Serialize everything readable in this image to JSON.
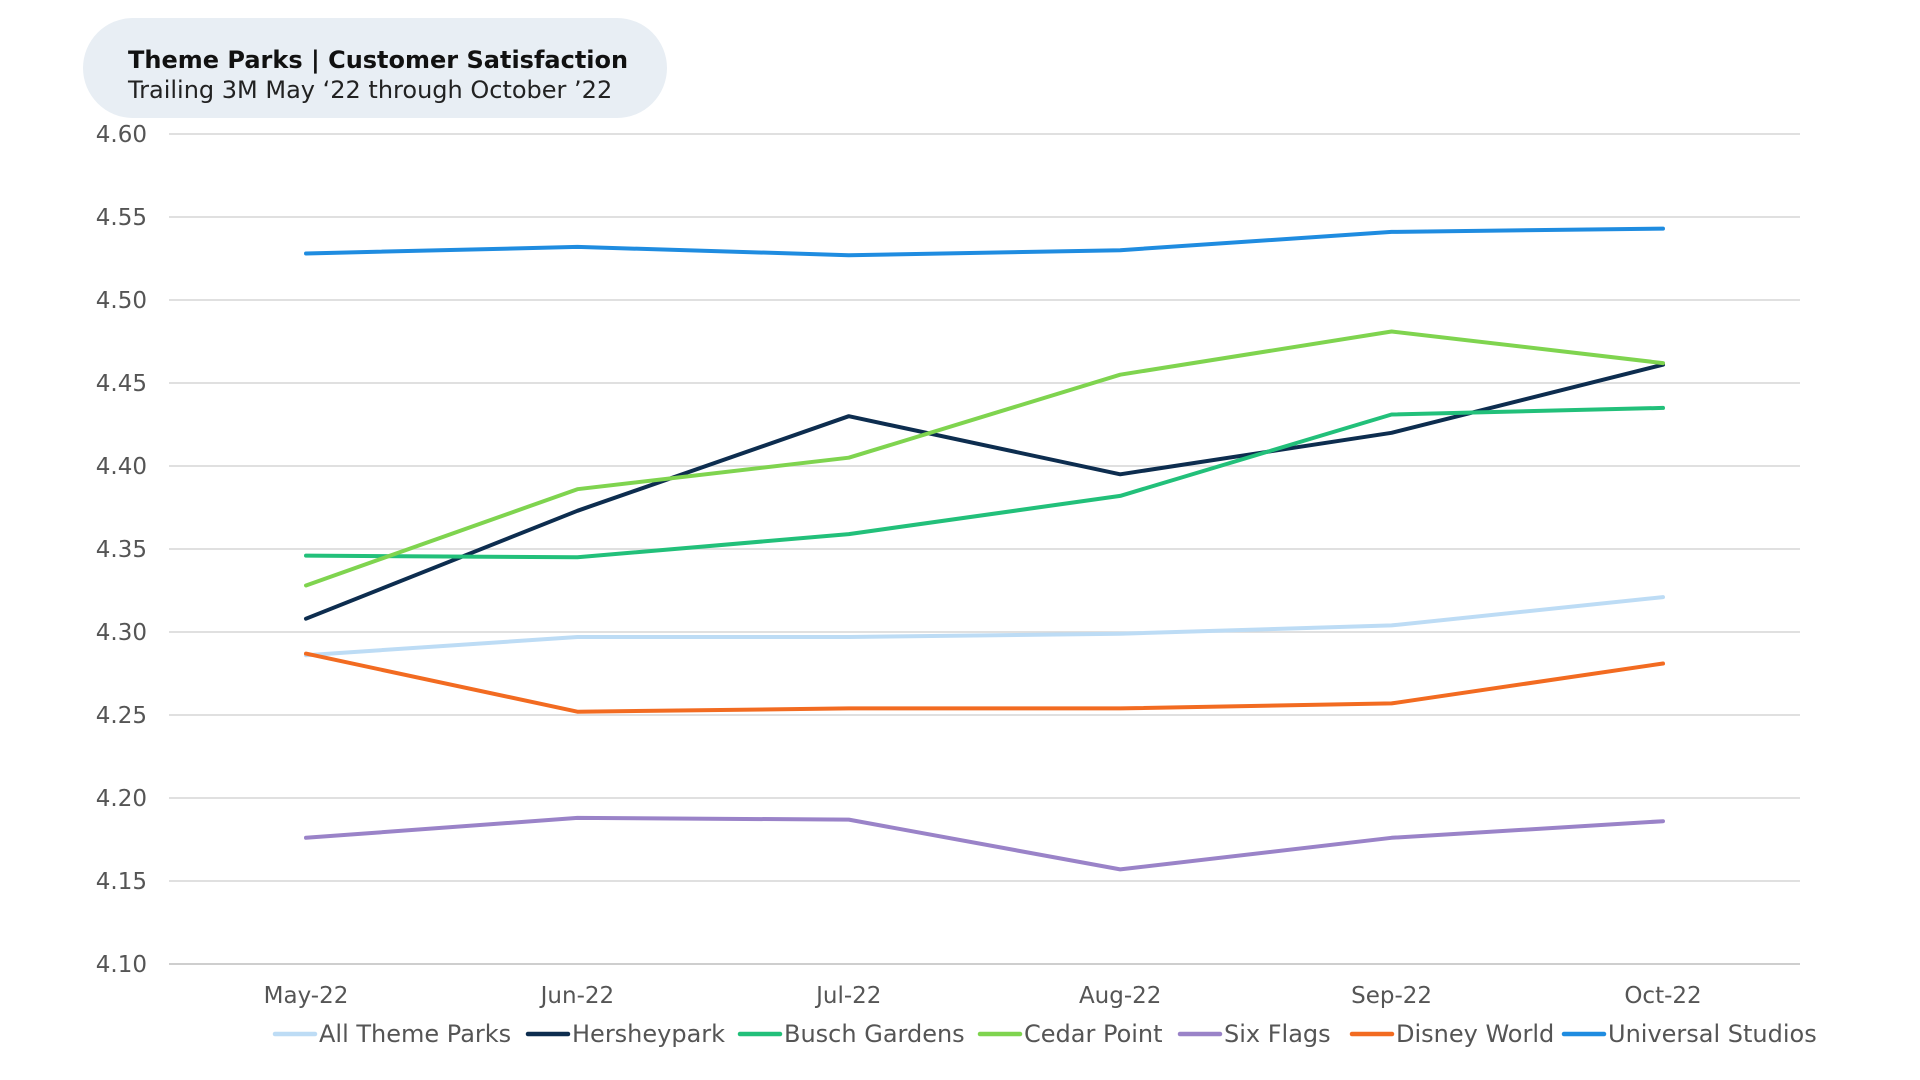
{
  "chart_data": {
    "type": "line",
    "title": "Theme Parks | Customer Satisfaction",
    "subtitle": "Trailing 3M May ‘22 through October ’22",
    "categories": [
      "May-22",
      "Jun-22",
      "Jul-22",
      "Aug-22",
      "Sep-22",
      "Oct-22"
    ],
    "ylim": [
      4.1,
      4.6
    ],
    "yticks": [
      "4.60",
      "4.55",
      "4.50",
      "4.45",
      "4.40",
      "4.35",
      "4.30",
      "4.25",
      "4.20",
      "4.15",
      "4.10"
    ],
    "grid": true,
    "legend_position": "bottom",
    "series": [
      {
        "name": "All Theme Parks",
        "color": "#bddcf5",
        "values": [
          4.286,
          4.297,
          4.297,
          4.299,
          4.304,
          4.321
        ]
      },
      {
        "name": "Hersheypark",
        "color": "#0d2d4f",
        "values": [
          4.308,
          4.373,
          4.43,
          4.395,
          4.42,
          4.461
        ]
      },
      {
        "name": "Busch Gardens",
        "color": "#22c07a",
        "values": [
          4.346,
          4.345,
          4.359,
          4.382,
          4.431,
          4.435
        ]
      },
      {
        "name": "Cedar Point",
        "color": "#7fd44f",
        "values": [
          4.328,
          4.386,
          4.405,
          4.455,
          4.481,
          4.462
        ]
      },
      {
        "name": "Six Flags",
        "color": "#9a83c8",
        "values": [
          4.176,
          4.188,
          4.187,
          4.157,
          4.176,
          4.186
        ]
      },
      {
        "name": "Disney World",
        "color": "#f26b21",
        "values": [
          4.287,
          4.252,
          4.254,
          4.254,
          4.257,
          4.281
        ]
      },
      {
        "name": "Universal Studios",
        "color": "#1f8ce0",
        "values": [
          4.528,
          4.532,
          4.527,
          4.53,
          4.541,
          4.543
        ]
      }
    ]
  }
}
